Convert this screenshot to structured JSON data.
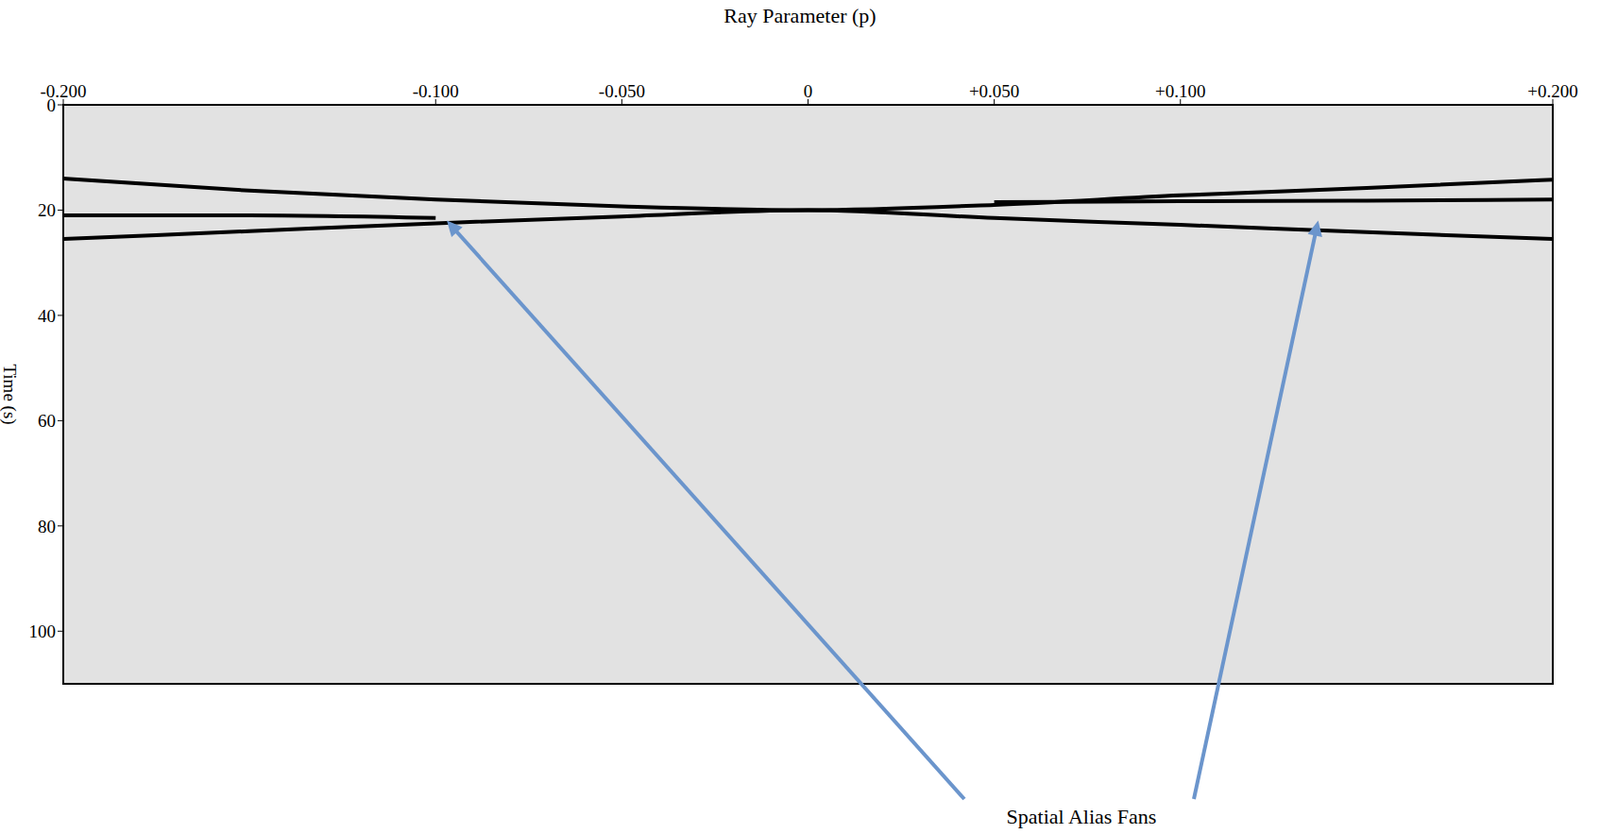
{
  "chart_data": {
    "type": "line",
    "xlabel": "Ray Parameter (p)",
    "ylabel": "Time (s)",
    "x": [
      -0.2,
      -0.15,
      -0.1,
      -0.05,
      0,
      0.05,
      0.1,
      0.15,
      0.2
    ],
    "series": [
      {
        "color": "#000000",
        "values": [
          14,
          16.3,
          18,
          19.3,
          20,
          19,
          17.2,
          15.8,
          14.2
        ]
      },
      {
        "color": "#000000",
        "values": [
          25.5,
          24,
          22.5,
          21.2,
          20,
          21.5,
          22.8,
          24.2,
          25.5
        ]
      },
      {
        "color": "#000000",
        "values": [
          21,
          21,
          21.5,
          null,
          null,
          null,
          null,
          null,
          null
        ]
      },
      {
        "color": "#000000",
        "values": [
          null,
          null,
          null,
          null,
          null,
          18.5,
          18.3,
          18.2,
          18
        ]
      }
    ],
    "xlim": [
      -0.2,
      0.2
    ],
    "xticks": [
      {
        "value": -0.2,
        "label": "-0.200"
      },
      {
        "value": -0.1,
        "label": "-0.100"
      },
      {
        "value": -0.05,
        "label": "-0.050"
      },
      {
        "value": 0,
        "label": "0"
      },
      {
        "value": 0.05,
        "label": "+0.050"
      },
      {
        "value": 0.1,
        "label": "+0.100"
      },
      {
        "value": 0.2,
        "label": "+0.200"
      }
    ],
    "ylim": [
      0,
      110
    ],
    "yticks": [
      0,
      20,
      40,
      60,
      80,
      100
    ],
    "grid": false,
    "annotations": [
      {
        "text": "Spatial Alias Fans",
        "points": [
          [
            -0.097,
            22
          ],
          [
            0.137,
            22
          ]
        ]
      }
    ]
  }
}
